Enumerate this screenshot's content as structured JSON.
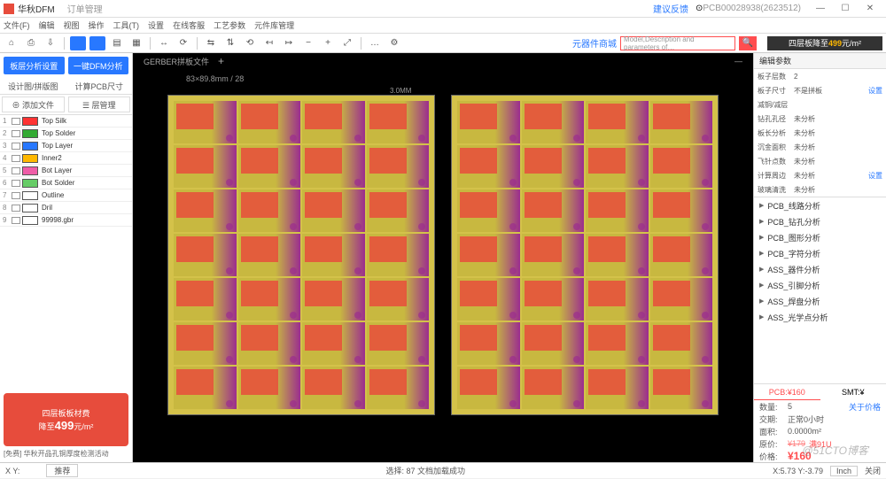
{
  "titlebar": {
    "app": "华秋DFM",
    "tab2": "订单管理",
    "link": "建议反馈",
    "docid": "PCB00028938(2623512)"
  },
  "menus": [
    "文件(F)",
    "编辑",
    "视图",
    "操作",
    "工具(T)",
    "设置",
    "在线客服",
    "工艺参数",
    "元件库管理"
  ],
  "toolbar": {
    "searchLabel": "元器件商城",
    "searchPlaceholder": "Model,Description and parameters of…"
  },
  "banner": {
    "text1": "四层板降至",
    "price": "499",
    "unit": "元/m²"
  },
  "left": {
    "btn1": "板层分析设置",
    "btn2": "一键DFM分析",
    "tab1": "设计图/拼版图",
    "tab2": "计算PCB尺寸",
    "fb1": "⊕ 添加文件",
    "fb2": "☰ 层管理",
    "layers": [
      {
        "n": "1",
        "color": "#ff3333",
        "name": "Top Silk"
      },
      {
        "n": "2",
        "color": "#33aa33",
        "name": "Top Solder"
      },
      {
        "n": "3",
        "color": "#2878ff",
        "name": "Top Layer"
      },
      {
        "n": "4",
        "color": "#ffb800",
        "name": "Inner2"
      },
      {
        "n": "5",
        "color": "#ef5da8",
        "name": "Bot Layer"
      },
      {
        "n": "6",
        "color": "#66cc66",
        "name": "Bot Solder"
      },
      {
        "n": "7",
        "color": "#ffffff",
        "name": "Outline"
      },
      {
        "n": "8",
        "color": "#ffffff",
        "name": "Dril"
      },
      {
        "n": "9",
        "color": "#ffffff",
        "name": "99998.gbr"
      }
    ],
    "promo": {
      "l1": "四层板板材费",
      "l2": "降至",
      "price": "499",
      "unit": "元/m²",
      "sub": "[免费] 华秋开品孔铜厚度检测活动"
    }
  },
  "viewport": {
    "tab": "GERBER拼板文件",
    "dim": "83×89.8mm / 28",
    "gap": "3.0MM"
  },
  "right": {
    "hdr": "编辑参数",
    "rows": [
      {
        "k": "板子层数",
        "v": "2",
        "a": ""
      },
      {
        "k": "板子尺寸",
        "v": "不是拼板",
        "a": "设置"
      },
      {
        "k": "减铜/减层",
        "v": "",
        "a": ""
      },
      {
        "k": "钻孔孔径",
        "v": "未分析",
        "a": ""
      },
      {
        "k": "板长分析",
        "v": "未分析",
        "a": ""
      },
      {
        "k": "沉金面积",
        "v": "未分析",
        "a": ""
      },
      {
        "k": "飞针点数",
        "v": "未分析",
        "a": ""
      },
      {
        "k": "计算周边",
        "v": "未分析",
        "a": "设置"
      },
      {
        "k": "玻璃清洗",
        "v": "未分析",
        "a": ""
      }
    ],
    "items": [
      "PCB_线路分析",
      "PCB_钻孔分析",
      "PCB_图形分析",
      "PCB_字符分析",
      "ASS_器件分析",
      "ASS_引脚分析",
      "ASS_焊盘分析",
      "ASS_光学点分析"
    ],
    "quote": {
      "t1": "PCB:",
      "t1v": "¥160",
      "t2": "SMT:",
      "t2v": "¥",
      "qty_l": "数量:",
      "qty": "5",
      "qlink": "关于价格",
      "time_l": "交期:",
      "time": "正常0小时",
      "area_l": "面积:",
      "area": "0.0000m²",
      "orig_l": "原价:",
      "orig_s": "¥179",
      "orig_v": "满91U",
      "price_l": "价格:",
      "price": "¥160"
    }
  },
  "status": {
    "xy": "X Y:",
    "zc": "推荐",
    "msg": "选择: 87 文档加载成功",
    "coord": "X:5.73  Y:-3.79",
    "unit": "Inch",
    "close": "关闭"
  },
  "watermark": "@51CTO博客"
}
